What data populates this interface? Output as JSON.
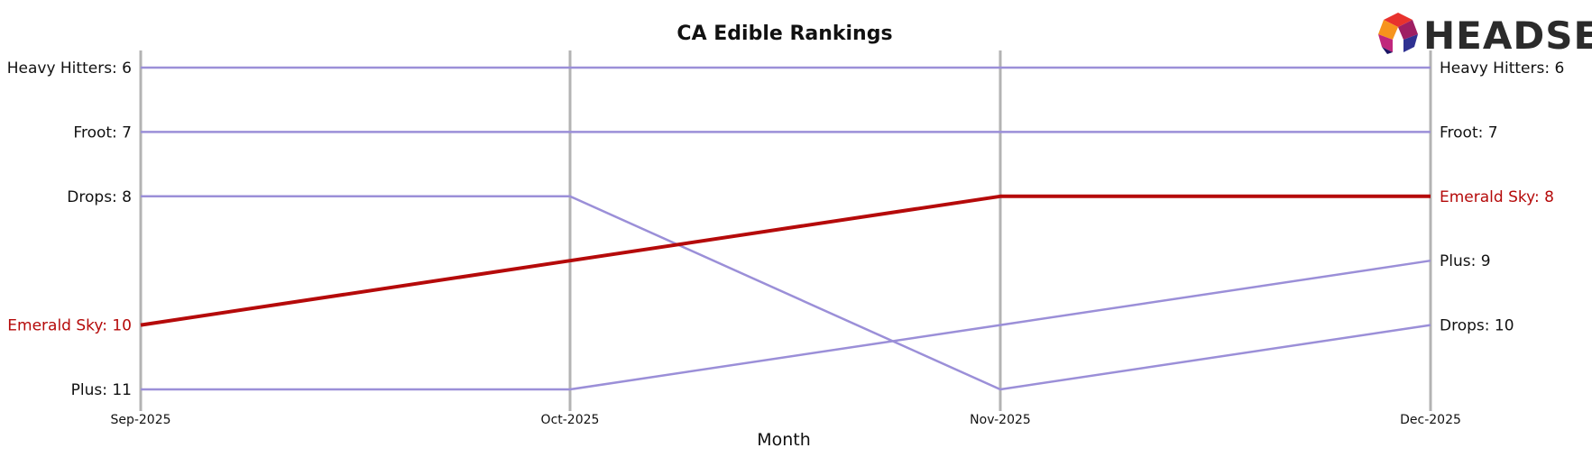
{
  "chart_data": {
    "type": "line",
    "title": "CA Edible Rankings",
    "xlabel": "Month",
    "ylabel": "",
    "categories": [
      "Sep-2025",
      "Oct-2025",
      "Nov-2025",
      "Dec-2025"
    ],
    "y_inverted": true,
    "ylim": [
      6,
      11
    ],
    "grid": "vertical lines at each month",
    "series": [
      {
        "name": "Heavy Hitters",
        "values": [
          6,
          6,
          6,
          6
        ],
        "color": "#9b8fd8",
        "highlight": false
      },
      {
        "name": "Froot",
        "values": [
          7,
          7,
          7,
          7
        ],
        "color": "#9b8fd8",
        "highlight": false
      },
      {
        "name": "Drops",
        "values": [
          8,
          8,
          11,
          10
        ],
        "color": "#9b8fd8",
        "highlight": false
      },
      {
        "name": "Emerald Sky",
        "values": [
          10,
          9,
          8,
          8
        ],
        "color": "#b50a0a",
        "highlight": true
      },
      {
        "name": "Plus",
        "values": [
          11,
          11,
          10,
          9
        ],
        "color": "#9b8fd8",
        "highlight": false
      }
    ],
    "left_labels": [
      "Heavy Hitters: 6",
      "Froot: 7",
      "Drops: 8",
      "Emerald Sky: 10",
      "Plus: 11"
    ],
    "right_labels": [
      "Heavy Hitters: 6",
      "Froot: 7",
      "Emerald Sky: 8",
      "Plus: 9",
      "Drops: 10"
    ]
  },
  "logo": {
    "text": "HEADSET",
    "colors": [
      "#e8322d",
      "#f7941d",
      "#9e1f63",
      "#c0267c",
      "#2e3192",
      "#1b1464"
    ]
  },
  "colors": {
    "highlight": "#b50a0a",
    "other": "#9b8fd8",
    "gridline": "#b3b3b3"
  }
}
